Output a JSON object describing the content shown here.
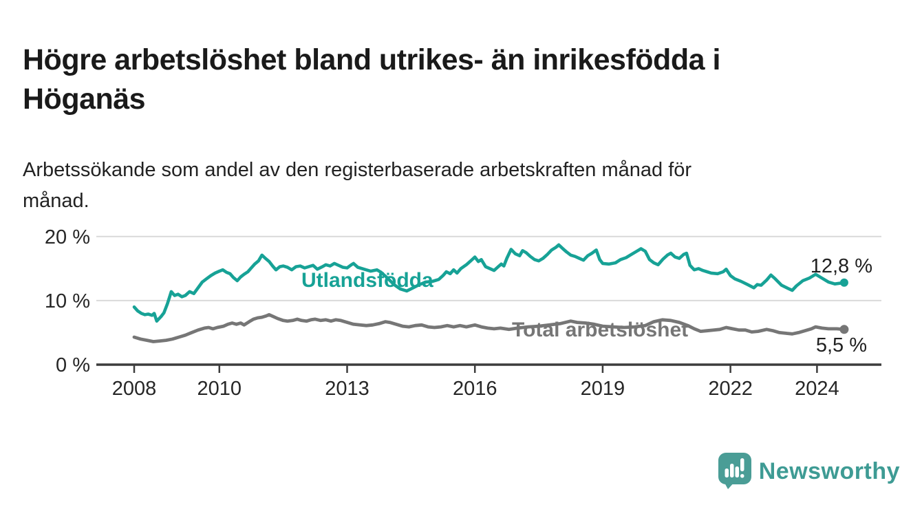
{
  "header": {
    "title": "Högre arbetslöshet bland utrikes- än inrikesfödda i\nHöganäs",
    "subtitle": "Arbetssökande som andel av den registerbaserade arbetskraften månad för\nmånad."
  },
  "chart_data": {
    "type": "line",
    "title": "Högre arbetslöshet bland utrikes- än inrikesfödda i Höganäs",
    "subtitle": "Arbetssökande som andel av den registerbaserade arbetskraften månad för månad.",
    "unit": "%",
    "grid": "horizontal",
    "x_axis": {
      "tick_years": [
        2008,
        2010,
        2013,
        2016,
        2019,
        2022,
        2024
      ],
      "tick_labels": [
        "2008",
        "2010",
        "2013",
        "2016",
        "2019",
        "2022",
        "2024"
      ],
      "range": [
        2007.6,
        2025.6
      ]
    },
    "y_axis": {
      "tick_values": [
        0,
        10,
        20
      ],
      "tick_labels": [
        "0 %",
        "10 %",
        "20 %"
      ],
      "range": [
        0,
        21.5
      ]
    },
    "series": [
      {
        "name": "Utlandsfödda",
        "color": "#17a296",
        "end_value": 12.8,
        "end_label": "12,8 %",
        "points": [
          [
            2008.0,
            9.0
          ],
          [
            2008.08,
            8.4
          ],
          [
            2008.17,
            8.0
          ],
          [
            2008.25,
            7.8
          ],
          [
            2008.33,
            7.9
          ],
          [
            2008.42,
            7.7
          ],
          [
            2008.47,
            8.0
          ],
          [
            2008.53,
            6.8
          ],
          [
            2008.63,
            7.5
          ],
          [
            2008.7,
            8.1
          ],
          [
            2008.78,
            9.5
          ],
          [
            2008.87,
            11.4
          ],
          [
            2008.95,
            10.8
          ],
          [
            2009.03,
            11.0
          ],
          [
            2009.12,
            10.6
          ],
          [
            2009.2,
            10.8
          ],
          [
            2009.3,
            11.4
          ],
          [
            2009.4,
            11.1
          ],
          [
            2009.5,
            12.0
          ],
          [
            2009.6,
            12.9
          ],
          [
            2009.7,
            13.4
          ],
          [
            2009.8,
            13.9
          ],
          [
            2009.9,
            14.3
          ],
          [
            2010.0,
            14.6
          ],
          [
            2010.08,
            14.8
          ],
          [
            2010.17,
            14.4
          ],
          [
            2010.25,
            14.2
          ],
          [
            2010.33,
            13.6
          ],
          [
            2010.42,
            13.1
          ],
          [
            2010.5,
            13.7
          ],
          [
            2010.58,
            14.1
          ],
          [
            2010.67,
            14.5
          ],
          [
            2010.75,
            15.1
          ],
          [
            2010.83,
            15.7
          ],
          [
            2010.92,
            16.2
          ],
          [
            2011.0,
            17.1
          ],
          [
            2011.08,
            16.6
          ],
          [
            2011.17,
            16.1
          ],
          [
            2011.25,
            15.4
          ],
          [
            2011.33,
            14.8
          ],
          [
            2011.42,
            15.3
          ],
          [
            2011.5,
            15.4
          ],
          [
            2011.6,
            15.2
          ],
          [
            2011.7,
            14.8
          ],
          [
            2011.8,
            15.3
          ],
          [
            2011.9,
            15.4
          ],
          [
            2012.0,
            15.1
          ],
          [
            2012.1,
            15.3
          ],
          [
            2012.2,
            15.5
          ],
          [
            2012.3,
            14.9
          ],
          [
            2012.42,
            15.3
          ],
          [
            2012.5,
            15.6
          ],
          [
            2012.6,
            15.4
          ],
          [
            2012.7,
            15.8
          ],
          [
            2012.8,
            15.5
          ],
          [
            2012.9,
            15.2
          ],
          [
            2013.0,
            15.1
          ],
          [
            2013.1,
            15.6
          ],
          [
            2013.15,
            15.8
          ],
          [
            2013.25,
            15.2
          ],
          [
            2013.4,
            14.9
          ],
          [
            2013.55,
            14.6
          ],
          [
            2013.7,
            14.8
          ],
          [
            2013.8,
            14.4
          ],
          [
            2013.95,
            13.5
          ],
          [
            2014.1,
            12.5
          ],
          [
            2014.25,
            11.8
          ],
          [
            2014.4,
            11.5
          ],
          [
            2014.55,
            12.0
          ],
          [
            2014.7,
            12.5
          ],
          [
            2014.85,
            12.9
          ],
          [
            2015.0,
            13.0
          ],
          [
            2015.15,
            13.3
          ],
          [
            2015.25,
            13.9
          ],
          [
            2015.33,
            14.5
          ],
          [
            2015.42,
            14.2
          ],
          [
            2015.5,
            14.8
          ],
          [
            2015.58,
            14.3
          ],
          [
            2015.67,
            15.0
          ],
          [
            2015.8,
            15.6
          ],
          [
            2015.92,
            16.3
          ],
          [
            2016.0,
            16.8
          ],
          [
            2016.08,
            16.1
          ],
          [
            2016.15,
            16.4
          ],
          [
            2016.25,
            15.3
          ],
          [
            2016.35,
            15.0
          ],
          [
            2016.45,
            14.7
          ],
          [
            2016.55,
            15.3
          ],
          [
            2016.62,
            15.7
          ],
          [
            2016.68,
            15.4
          ],
          [
            2016.75,
            16.6
          ],
          [
            2016.85,
            18.0
          ],
          [
            2016.95,
            17.3
          ],
          [
            2017.05,
            17.0
          ],
          [
            2017.12,
            17.8
          ],
          [
            2017.2,
            17.5
          ],
          [
            2017.3,
            16.9
          ],
          [
            2017.4,
            16.4
          ],
          [
            2017.5,
            16.2
          ],
          [
            2017.6,
            16.6
          ],
          [
            2017.7,
            17.2
          ],
          [
            2017.8,
            17.9
          ],
          [
            2017.9,
            18.3
          ],
          [
            2017.97,
            18.7
          ],
          [
            2018.05,
            18.2
          ],
          [
            2018.15,
            17.6
          ],
          [
            2018.25,
            17.1
          ],
          [
            2018.35,
            16.9
          ],
          [
            2018.45,
            16.6
          ],
          [
            2018.55,
            16.3
          ],
          [
            2018.65,
            17.0
          ],
          [
            2018.75,
            17.4
          ],
          [
            2018.85,
            17.9
          ],
          [
            2018.93,
            16.4
          ],
          [
            2019.0,
            15.8
          ],
          [
            2019.15,
            15.7
          ],
          [
            2019.3,
            15.9
          ],
          [
            2019.42,
            16.4
          ],
          [
            2019.55,
            16.7
          ],
          [
            2019.67,
            17.2
          ],
          [
            2019.8,
            17.7
          ],
          [
            2019.9,
            18.1
          ],
          [
            2020.0,
            17.7
          ],
          [
            2020.1,
            16.4
          ],
          [
            2020.2,
            15.9
          ],
          [
            2020.3,
            15.6
          ],
          [
            2020.42,
            16.5
          ],
          [
            2020.52,
            17.1
          ],
          [
            2020.6,
            17.4
          ],
          [
            2020.7,
            16.8
          ],
          [
            2020.8,
            16.6
          ],
          [
            2020.9,
            17.2
          ],
          [
            2020.97,
            17.4
          ],
          [
            2021.05,
            15.5
          ],
          [
            2021.15,
            14.8
          ],
          [
            2021.25,
            15.0
          ],
          [
            2021.35,
            14.7
          ],
          [
            2021.45,
            14.5
          ],
          [
            2021.55,
            14.3
          ],
          [
            2021.7,
            14.2
          ],
          [
            2021.83,
            14.5
          ],
          [
            2021.9,
            14.9
          ],
          [
            2022.0,
            13.9
          ],
          [
            2022.1,
            13.4
          ],
          [
            2022.25,
            13.0
          ],
          [
            2022.4,
            12.5
          ],
          [
            2022.55,
            12.0
          ],
          [
            2022.63,
            12.5
          ],
          [
            2022.72,
            12.4
          ],
          [
            2022.85,
            13.2
          ],
          [
            2022.95,
            14.0
          ],
          [
            2023.05,
            13.4
          ],
          [
            2023.2,
            12.4
          ],
          [
            2023.35,
            11.9
          ],
          [
            2023.45,
            11.6
          ],
          [
            2023.55,
            12.3
          ],
          [
            2023.7,
            13.1
          ],
          [
            2023.85,
            13.5
          ],
          [
            2024.0,
            14.1
          ],
          [
            2024.15,
            13.5
          ],
          [
            2024.3,
            12.9
          ],
          [
            2024.45,
            12.6
          ],
          [
            2024.67,
            12.8
          ]
        ]
      },
      {
        "name": "Total arbetslöshet",
        "color": "#767676",
        "end_value": 5.5,
        "end_label": "5,5 %",
        "points": [
          [
            2008.0,
            4.3
          ],
          [
            2008.15,
            4.0
          ],
          [
            2008.3,
            3.8
          ],
          [
            2008.45,
            3.6
          ],
          [
            2008.6,
            3.7
          ],
          [
            2008.75,
            3.8
          ],
          [
            2008.9,
            4.0
          ],
          [
            2009.05,
            4.3
          ],
          [
            2009.2,
            4.6
          ],
          [
            2009.35,
            5.0
          ],
          [
            2009.5,
            5.4
          ],
          [
            2009.65,
            5.7
          ],
          [
            2009.75,
            5.8
          ],
          [
            2009.85,
            5.6
          ],
          [
            2009.95,
            5.8
          ],
          [
            2010.1,
            6.0
          ],
          [
            2010.2,
            6.3
          ],
          [
            2010.3,
            6.5
          ],
          [
            2010.4,
            6.3
          ],
          [
            2010.5,
            6.5
          ],
          [
            2010.58,
            6.2
          ],
          [
            2010.7,
            6.7
          ],
          [
            2010.8,
            7.1
          ],
          [
            2010.9,
            7.3
          ],
          [
            2011.0,
            7.4
          ],
          [
            2011.1,
            7.6
          ],
          [
            2011.17,
            7.8
          ],
          [
            2011.27,
            7.5
          ],
          [
            2011.37,
            7.2
          ],
          [
            2011.5,
            6.9
          ],
          [
            2011.6,
            6.8
          ],
          [
            2011.72,
            6.9
          ],
          [
            2011.83,
            7.1
          ],
          [
            2011.93,
            6.9
          ],
          [
            2012.05,
            6.8
          ],
          [
            2012.15,
            7.0
          ],
          [
            2012.25,
            7.1
          ],
          [
            2012.38,
            6.9
          ],
          [
            2012.5,
            7.0
          ],
          [
            2012.62,
            6.8
          ],
          [
            2012.73,
            7.0
          ],
          [
            2012.85,
            6.9
          ],
          [
            2013.0,
            6.6
          ],
          [
            2013.15,
            6.3
          ],
          [
            2013.3,
            6.2
          ],
          [
            2013.45,
            6.1
          ],
          [
            2013.6,
            6.2
          ],
          [
            2013.75,
            6.4
          ],
          [
            2013.9,
            6.7
          ],
          [
            2014.0,
            6.6
          ],
          [
            2014.15,
            6.3
          ],
          [
            2014.3,
            6.0
          ],
          [
            2014.45,
            5.9
          ],
          [
            2014.6,
            6.1
          ],
          [
            2014.75,
            6.2
          ],
          [
            2014.9,
            5.9
          ],
          [
            2015.05,
            5.8
          ],
          [
            2015.2,
            5.9
          ],
          [
            2015.35,
            6.1
          ],
          [
            2015.5,
            5.9
          ],
          [
            2015.65,
            6.1
          ],
          [
            2015.8,
            5.9
          ],
          [
            2016.0,
            6.2
          ],
          [
            2016.15,
            5.9
          ],
          [
            2016.3,
            5.7
          ],
          [
            2016.45,
            5.6
          ],
          [
            2016.6,
            5.7
          ],
          [
            2016.8,
            5.5
          ],
          [
            2017.0,
            5.7
          ],
          [
            2017.25,
            5.9
          ],
          [
            2017.5,
            6.0
          ],
          [
            2017.75,
            6.2
          ],
          [
            2018.0,
            6.4
          ],
          [
            2018.25,
            6.8
          ],
          [
            2018.4,
            6.6
          ],
          [
            2018.6,
            6.5
          ],
          [
            2018.8,
            6.3
          ],
          [
            2019.0,
            6.0
          ],
          [
            2019.25,
            5.9
          ],
          [
            2019.5,
            5.8
          ],
          [
            2019.75,
            5.9
          ],
          [
            2020.0,
            6.1
          ],
          [
            2020.2,
            6.7
          ],
          [
            2020.4,
            7.0
          ],
          [
            2020.6,
            6.9
          ],
          [
            2020.8,
            6.6
          ],
          [
            2021.0,
            6.1
          ],
          [
            2021.15,
            5.6
          ],
          [
            2021.3,
            5.2
          ],
          [
            2021.45,
            5.3
          ],
          [
            2021.6,
            5.4
          ],
          [
            2021.75,
            5.5
          ],
          [
            2021.9,
            5.8
          ],
          [
            2022.05,
            5.6
          ],
          [
            2022.2,
            5.4
          ],
          [
            2022.35,
            5.4
          ],
          [
            2022.5,
            5.1
          ],
          [
            2022.65,
            5.2
          ],
          [
            2022.85,
            5.5
          ],
          [
            2023.0,
            5.3
          ],
          [
            2023.15,
            5.0
          ],
          [
            2023.3,
            4.9
          ],
          [
            2023.45,
            4.8
          ],
          [
            2023.6,
            5.0
          ],
          [
            2023.75,
            5.3
          ],
          [
            2023.9,
            5.6
          ],
          [
            2024.0,
            5.9
          ],
          [
            2024.15,
            5.7
          ],
          [
            2024.3,
            5.6
          ],
          [
            2024.5,
            5.6
          ],
          [
            2024.67,
            5.5
          ]
        ]
      }
    ]
  },
  "footer": {
    "brand": "Newsworthy",
    "brand_color": "#3e9b94",
    "logo_icon": "speech-bubble-bar-chart-exclamation"
  }
}
